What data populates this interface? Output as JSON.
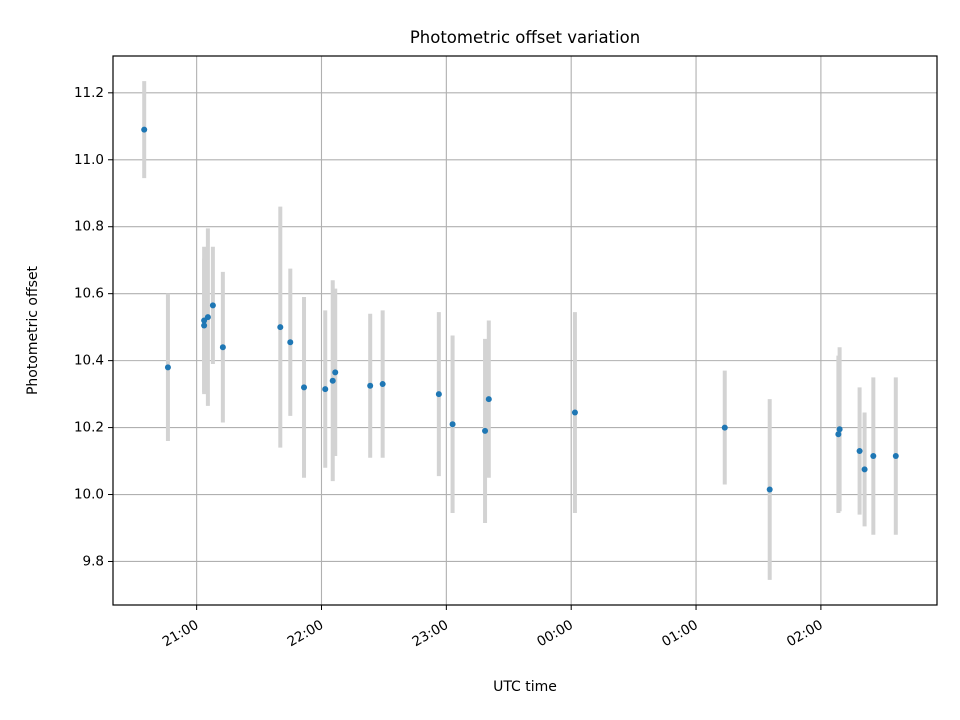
{
  "chart_data": {
    "type": "scatter",
    "title": "Photometric offset variation",
    "xlabel": "UTC time",
    "ylabel": "Photometric offset",
    "x_is_time": true,
    "x_unit": "UTC time of night, hours after 20:00 (values past 24 are the next day)",
    "xlim": [
      20.33,
      26.93
    ],
    "ylim": [
      9.67,
      11.31
    ],
    "grid": true,
    "x_ticks": [
      {
        "value": 21,
        "label": "21:00"
      },
      {
        "value": 22,
        "label": "22:00"
      },
      {
        "value": 23,
        "label": "23:00"
      },
      {
        "value": 24,
        "label": "00:00"
      },
      {
        "value": 25,
        "label": "01:00"
      },
      {
        "value": 26,
        "label": "02:00"
      }
    ],
    "y_ticks": [
      {
        "value": 9.8,
        "label": "9.8"
      },
      {
        "value": 10.0,
        "label": "10.0"
      },
      {
        "value": 10.2,
        "label": "10.2"
      },
      {
        "value": 10.4,
        "label": "10.4"
      },
      {
        "value": 10.6,
        "label": "10.6"
      },
      {
        "value": 10.8,
        "label": "10.8"
      },
      {
        "value": 11.0,
        "label": "11.0"
      },
      {
        "value": 11.2,
        "label": "11.2"
      }
    ],
    "colors": {
      "marker": "#1f77b4",
      "errorbar": "#d3d3d3",
      "grid": "#b0b0b0"
    },
    "points": [
      {
        "x": 20.58,
        "y": 11.09,
        "err": 0.145
      },
      {
        "x": 20.77,
        "y": 10.38,
        "err": 0.22
      },
      {
        "x": 21.06,
        "y": 10.52,
        "err": 0.22
      },
      {
        "x": 21.06,
        "y": 10.505,
        "err": 0.2
      },
      {
        "x": 21.09,
        "y": 10.53,
        "err": 0.265
      },
      {
        "x": 21.13,
        "y": 10.565,
        "err": 0.175
      },
      {
        "x": 21.21,
        "y": 10.44,
        "err": 0.225
      },
      {
        "x": 21.67,
        "y": 10.5,
        "err": 0.36
      },
      {
        "x": 21.75,
        "y": 10.455,
        "err": 0.22
      },
      {
        "x": 21.86,
        "y": 10.32,
        "err": 0.27
      },
      {
        "x": 22.03,
        "y": 10.315,
        "err": 0.235
      },
      {
        "x": 22.09,
        "y": 10.34,
        "err": 0.3
      },
      {
        "x": 22.11,
        "y": 10.365,
        "err": 0.25
      },
      {
        "x": 22.39,
        "y": 10.325,
        "err": 0.215
      },
      {
        "x": 22.49,
        "y": 10.33,
        "err": 0.22
      },
      {
        "x": 22.94,
        "y": 10.3,
        "err": 0.245
      },
      {
        "x": 23.05,
        "y": 10.21,
        "err": 0.265
      },
      {
        "x": 23.31,
        "y": 10.19,
        "err": 0.275
      },
      {
        "x": 23.34,
        "y": 10.285,
        "err": 0.235
      },
      {
        "x": 24.03,
        "y": 10.245,
        "err": 0.3
      },
      {
        "x": 25.23,
        "y": 10.2,
        "err": 0.17
      },
      {
        "x": 25.59,
        "y": 10.015,
        "err": 0.27
      },
      {
        "x": 26.14,
        "y": 10.18,
        "err": 0.235
      },
      {
        "x": 26.15,
        "y": 10.195,
        "err": 0.245
      },
      {
        "x": 26.31,
        "y": 10.13,
        "err": 0.19
      },
      {
        "x": 26.35,
        "y": 10.075,
        "err": 0.17
      },
      {
        "x": 26.42,
        "y": 10.115,
        "err": 0.235
      },
      {
        "x": 26.6,
        "y": 10.115,
        "err": 0.235
      }
    ]
  }
}
